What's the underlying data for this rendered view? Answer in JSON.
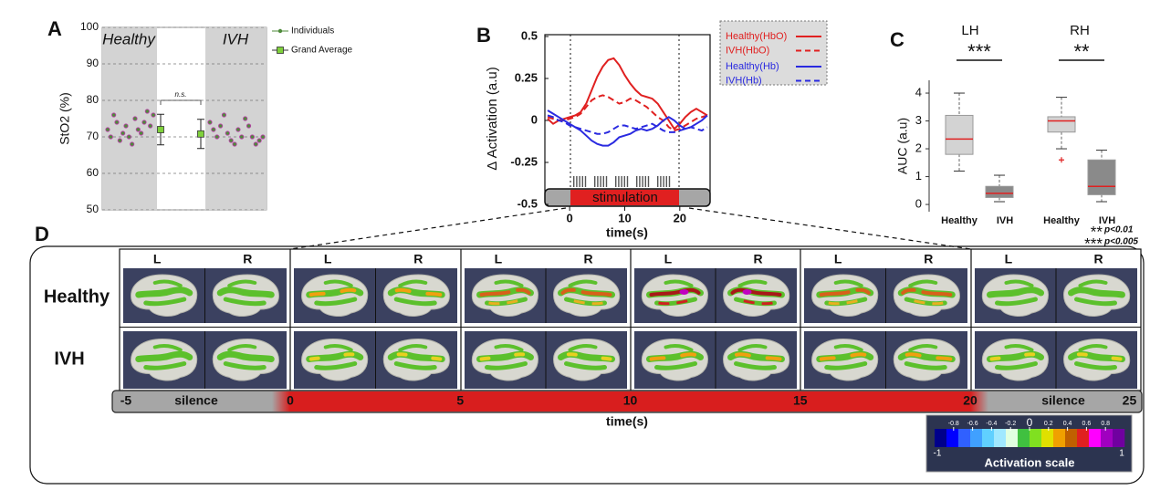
{
  "chart_data": [
    {
      "type": "scatter",
      "label": "A",
      "group_labels": [
        "Healthy",
        "IVH"
      ],
      "y_label": "StO2 (%)",
      "ylim": [
        50,
        100
      ],
      "yticks": [
        50,
        60,
        70,
        80,
        90,
        100
      ],
      "grid": true,
      "annotation": "n.s.",
      "series": [
        {
          "name": "Individuals",
          "color": "#4e8a3a",
          "groups": [
            [
              72,
              70,
              76,
              74,
              69,
              71,
              73,
              70,
              68,
              75,
              72,
              71,
              74,
              77,
              73,
              76
            ],
            [
              74,
              72,
              70,
              73,
              76,
              71,
              69,
              68,
              72,
              70,
              75,
              73,
              70,
              68,
              69,
              70
            ]
          ]
        },
        {
          "name": "Grand Average",
          "color": "#7fd13b",
          "values": [
            72,
            70.8
          ],
          "errors": [
            4.2,
            4.0
          ]
        }
      ]
    },
    {
      "type": "line",
      "label": "B",
      "y_label": "Δ Activation (a.u)",
      "x_label": "time(s)",
      "annotation": "stimulation",
      "x": [
        -4,
        -3,
        -2,
        -1,
        0,
        1,
        2,
        3,
        4,
        5,
        6,
        7,
        8,
        9,
        10,
        11,
        12,
        13,
        14,
        15,
        16,
        17,
        18,
        19,
        20,
        21,
        22,
        23,
        24,
        25
      ],
      "xlim": [
        -4.5,
        25.5
      ],
      "xticks": [
        0,
        10,
        20
      ],
      "ylim": [
        -0.5,
        0.5
      ],
      "yticks": [
        -0.5,
        -0.25,
        0,
        0.25,
        0.5
      ],
      "series": [
        {
          "name": "Healthy(HbO)",
          "color": "#e02020",
          "dash": "solid",
          "values": [
            0.01,
            -0.02,
            0,
            0.01,
            0.02,
            0.03,
            0.05,
            0.1,
            0.18,
            0.26,
            0.32,
            0.36,
            0.37,
            0.33,
            0.27,
            0.22,
            0.18,
            0.15,
            0.14,
            0.13,
            0.1,
            0.05,
            0.0,
            -0.05,
            -0.02,
            0.02,
            0.05,
            0.07,
            0.05,
            0.03
          ]
        },
        {
          "name": "IVH(HbO)",
          "color": "#e02020",
          "dash": "dashed",
          "values": [
            0.02,
            0.01,
            0,
            0,
            0.01,
            0.02,
            0.04,
            0.08,
            0.12,
            0.14,
            0.15,
            0.14,
            0.12,
            0.1,
            0.11,
            0.13,
            0.12,
            0.1,
            0.08,
            0.05,
            0.02,
            0.0,
            -0.04,
            -0.06,
            -0.05,
            -0.03,
            -0.01,
            0.01,
            0.02,
            0.03
          ]
        },
        {
          "name": "Healthy(Hb)",
          "color": "#2a2ae0",
          "dash": "solid",
          "values": [
            0.06,
            0.04,
            0.02,
            0.0,
            -0.02,
            -0.04,
            -0.06,
            -0.09,
            -0.12,
            -0.14,
            -0.15,
            -0.15,
            -0.13,
            -0.1,
            -0.09,
            -0.08,
            -0.06,
            -0.05,
            -0.06,
            -0.05,
            -0.03,
            0.0,
            0.02,
            0.0,
            -0.03,
            -0.05,
            -0.04,
            -0.02,
            0.0,
            0.03
          ]
        },
        {
          "name": "IVH(Hb)",
          "color": "#2a2ae0",
          "dash": "dashed",
          "values": [
            0.03,
            0.02,
            0.0,
            -0.01,
            -0.03,
            -0.04,
            -0.05,
            -0.06,
            -0.07,
            -0.08,
            -0.08,
            -0.07,
            -0.05,
            -0.03,
            -0.03,
            -0.04,
            -0.05,
            -0.04,
            -0.03,
            -0.02,
            -0.04,
            -0.06,
            -0.07,
            -0.07,
            -0.06,
            -0.05,
            -0.04,
            -0.05,
            -0.06,
            -0.04
          ]
        }
      ]
    },
    {
      "type": "box",
      "label": "C",
      "y_label": "AUC (a.u)",
      "ylim": [
        -0.26,
        4.46
      ],
      "yticks": [
        0,
        1,
        2,
        3,
        4
      ],
      "groups": [
        "LH",
        "RH"
      ],
      "categories": [
        "Healthy",
        "IVH",
        "Healthy",
        "IVH"
      ],
      "boxes": [
        {
          "min": 1.2,
          "q1": 1.8,
          "median": 2.35,
          "q3": 3.2,
          "max": 4.0,
          "color": "#d3d3d3",
          "outliers": []
        },
        {
          "min": 0.1,
          "q1": 0.25,
          "median": 0.4,
          "q3": 0.65,
          "max": 1.05,
          "color": "#8a8a8a",
          "outliers": []
        },
        {
          "min": 2.0,
          "q1": 2.6,
          "median": 3.0,
          "q3": 3.15,
          "max": 3.85,
          "color": "#d3d3d3",
          "outliers": [
            1.6
          ]
        },
        {
          "min": 0.1,
          "q1": 0.35,
          "median": 0.65,
          "q3": 1.6,
          "max": 1.95,
          "color": "#8a8a8a",
          "outliers": []
        }
      ],
      "significance": [
        "***",
        "**"
      ],
      "notes": [
        {
          "stars": "**",
          "text": "p<0.01"
        },
        {
          "stars": "***",
          "text": "p<0.005"
        }
      ]
    }
  ],
  "panel_d": {
    "label": "D",
    "rows": [
      "Healthy",
      "IVH"
    ],
    "hemispheres": [
      "L",
      "R"
    ],
    "timeline": {
      "ticks": [
        -5,
        0,
        5,
        10,
        15,
        20,
        25
      ],
      "silence": [
        "silence",
        "silence"
      ],
      "x_label": "time(s)"
    },
    "colorbar": {
      "ticks": [
        -0.8,
        -0.6,
        -0.4,
        -0.2,
        0,
        0.2,
        0.4,
        0.6,
        0.8
      ],
      "ends": [
        -1,
        1
      ],
      "label": "Activation scale",
      "colors": [
        "#00008b",
        "#0000ff",
        "#3060ff",
        "#40a0ff",
        "#60d0ff",
        "#a0e8ff",
        "#e0ffe0",
        "#40c040",
        "#80e020",
        "#e0e000",
        "#f0a000",
        "#c06000",
        "#e02020",
        "#ff00ff",
        "#a000c0",
        "#7000a0"
      ]
    }
  }
}
